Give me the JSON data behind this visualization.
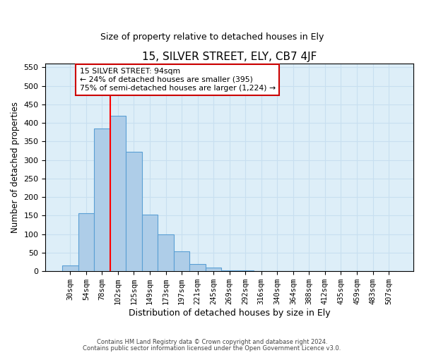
{
  "title": "15, SILVER STREET, ELY, CB7 4JF",
  "subtitle": "Size of property relative to detached houses in Ely",
  "xlabel": "Distribution of detached houses by size in Ely",
  "ylabel": "Number of detached properties",
  "bar_labels": [
    "30sqm",
    "54sqm",
    "78sqm",
    "102sqm",
    "125sqm",
    "149sqm",
    "173sqm",
    "197sqm",
    "221sqm",
    "245sqm",
    "269sqm",
    "292sqm",
    "316sqm",
    "340sqm",
    "364sqm",
    "388sqm",
    "412sqm",
    "435sqm",
    "459sqm",
    "483sqm",
    "507sqm"
  ],
  "bar_heights": [
    15,
    157,
    385,
    420,
    323,
    152,
    100,
    54,
    20,
    10,
    3,
    2,
    1,
    0,
    0,
    1,
    0,
    0,
    0,
    0,
    1
  ],
  "bar_color": "#aecde8",
  "bar_edge_color": "#5a9fd4",
  "vline_color": "red",
  "vline_pos": 2.5,
  "ylim": [
    0,
    560
  ],
  "yticks": [
    0,
    50,
    100,
    150,
    200,
    250,
    300,
    350,
    400,
    450,
    500,
    550
  ],
  "annotation_title": "15 SILVER STREET: 94sqm",
  "annotation_line1": "← 24% of detached houses are smaller (395)",
  "annotation_line2": "75% of semi-detached houses are larger (1,224) →",
  "annotation_box_color": "#ffffff",
  "annotation_box_edge": "#cc0000",
  "footer1": "Contains HM Land Registry data © Crown copyright and database right 2024.",
  "footer2": "Contains public sector information licensed under the Open Government Licence v3.0."
}
